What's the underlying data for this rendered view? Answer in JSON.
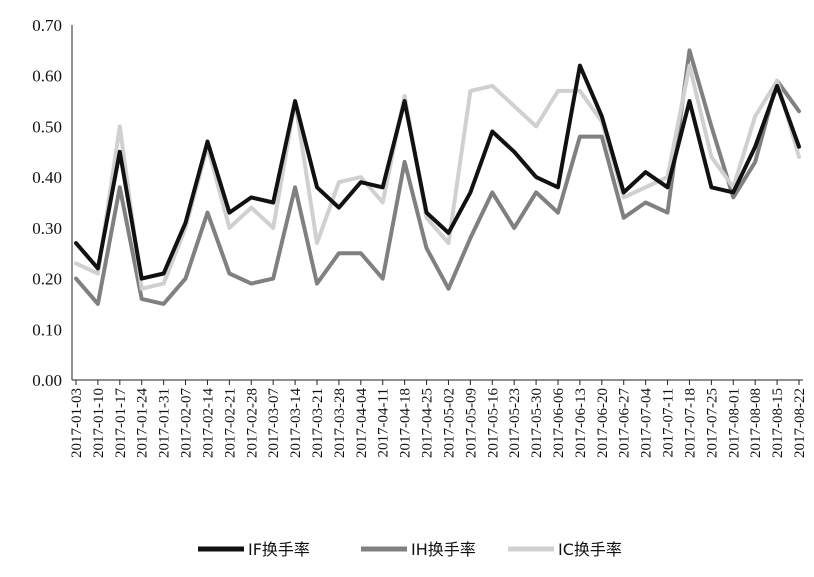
{
  "chart_data": {
    "type": "line",
    "title": "",
    "xlabel": "",
    "ylabel": "",
    "ylim": [
      0,
      0.7
    ],
    "yticks": [
      "0.00",
      "0.10",
      "0.20",
      "0.30",
      "0.40",
      "0.50",
      "0.60",
      "0.70"
    ],
    "x": [
      "2017-01-03",
      "2017-01-10",
      "2017-01-17",
      "2017-01-24",
      "2017-01-31",
      "2017-02-07",
      "2017-02-14",
      "2017-02-21",
      "2017-02-28",
      "2017-03-07",
      "2017-03-14",
      "2017-03-21",
      "2017-03-28",
      "2017-04-04",
      "2017-04-11",
      "2017-04-18",
      "2017-04-25",
      "2017-05-02",
      "2017-05-09",
      "2017-05-16",
      "2017-05-23",
      "2017-05-30",
      "2017-06-06",
      "2017-06-13",
      "2017-06-20",
      "2017-06-27",
      "2017-07-04",
      "2017-07-11",
      "2017-07-18",
      "2017-07-25",
      "2017-08-01",
      "2017-08-08",
      "2017-08-15",
      "2017-08-22"
    ],
    "legend_position": "bottom",
    "grid": false,
    "series": [
      {
        "name": "IF换手率",
        "color": "#111111",
        "values": [
          0.27,
          0.22,
          0.45,
          0.2,
          0.21,
          0.31,
          0.47,
          0.33,
          0.36,
          0.35,
          0.55,
          0.38,
          0.34,
          0.39,
          0.38,
          0.55,
          0.33,
          0.29,
          0.37,
          0.49,
          0.45,
          0.4,
          0.38,
          0.62,
          0.52,
          0.37,
          0.41,
          0.38,
          0.55,
          0.38,
          0.37,
          0.46,
          0.58,
          0.46
        ]
      },
      {
        "name": "IH换手率",
        "color": "#808080",
        "values": [
          0.2,
          0.15,
          0.38,
          0.16,
          0.15,
          0.2,
          0.33,
          0.21,
          0.19,
          0.2,
          0.38,
          0.19,
          0.25,
          0.25,
          0.2,
          0.43,
          0.26,
          0.18,
          0.28,
          0.37,
          0.3,
          0.37,
          0.33,
          0.48,
          0.48,
          0.32,
          0.35,
          0.33,
          0.65,
          0.5,
          0.36,
          0.43,
          0.59,
          0.53
        ]
      },
      {
        "name": "IC换手率",
        "color": "#d0d0d0",
        "values": [
          0.23,
          0.21,
          0.5,
          0.18,
          0.19,
          0.3,
          0.46,
          0.3,
          0.34,
          0.3,
          0.55,
          0.27,
          0.39,
          0.4,
          0.35,
          0.56,
          0.32,
          0.27,
          0.57,
          0.58,
          0.54,
          0.5,
          0.57,
          0.57,
          0.51,
          0.36,
          0.38,
          0.4,
          0.62,
          0.44,
          0.38,
          0.52,
          0.59,
          0.44
        ]
      }
    ]
  }
}
